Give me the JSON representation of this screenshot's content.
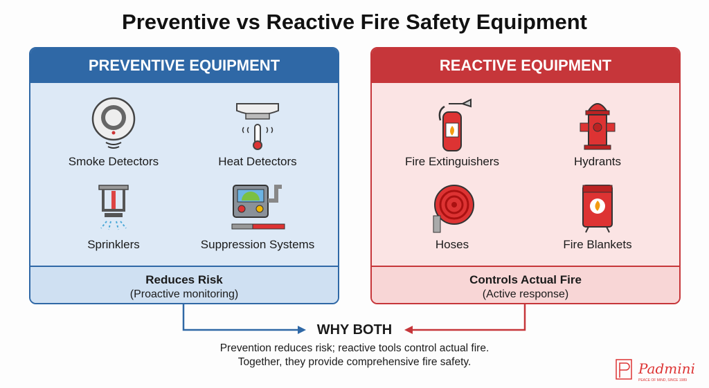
{
  "title": "Preventive vs Reactive Fire Safety Equipment",
  "preventive": {
    "header": "PREVENTIVE EQUIPMENT",
    "items": [
      {
        "label": "Smoke Detectors",
        "icon": "smoke-detector-icon"
      },
      {
        "label": "Heat Detectors",
        "icon": "heat-detector-icon"
      },
      {
        "label": "Sprinklers",
        "icon": "sprinkler-icon"
      },
      {
        "label": "Suppression Systems",
        "icon": "suppression-system-icon"
      }
    ],
    "footer_title": "Reduces Risk",
    "footer_sub": "(Proactive monitoring)",
    "color": "#2f68a6"
  },
  "reactive": {
    "header": "REACTIVE EQUIPMENT",
    "items": [
      {
        "label": "Fire Extinguishers",
        "icon": "fire-extinguisher-icon"
      },
      {
        "label": "Hydrants",
        "icon": "hydrant-icon"
      },
      {
        "label": "Hoses",
        "icon": "hose-icon"
      },
      {
        "label": "Fire Blankets",
        "icon": "fire-blanket-icon"
      }
    ],
    "footer_title": "Controls Actual Fire",
    "footer_sub": "(Active response)",
    "color": "#c6363a"
  },
  "why": {
    "title": "WHY BOTH",
    "line1": "Prevention reduces risk; reactive tools control actual fire.",
    "line2": "Together, they provide comprehensive fire safety."
  },
  "logo": {
    "name": "Padmini",
    "tagline": "PEACE OF MIND, SINCE 1989"
  }
}
